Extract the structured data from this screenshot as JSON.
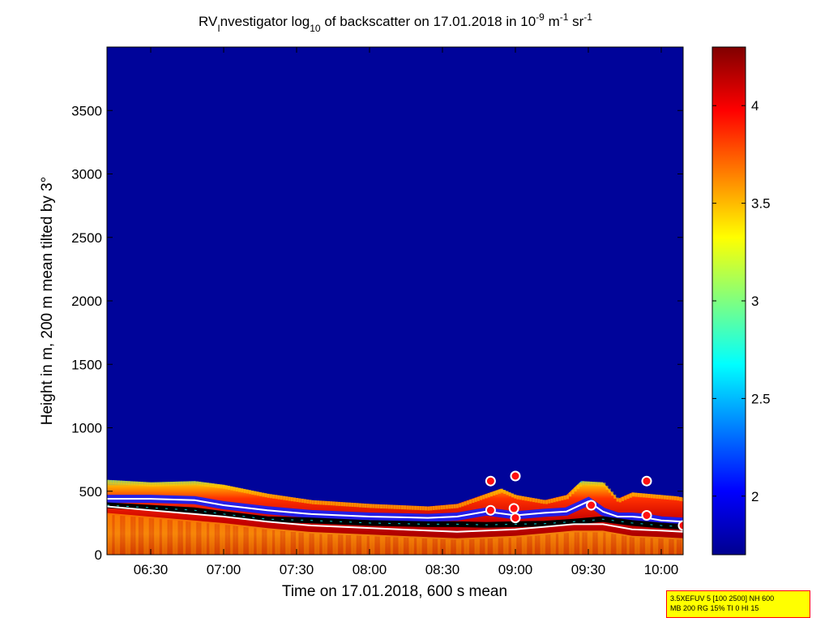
{
  "chart_data": {
    "type": "heatmap",
    "title": {
      "part1": "RV",
      "part1_sub": "I",
      "part2": "nvestigator log",
      "part2_sub": "10",
      "part3": " of backscatter on 17.01.2018 in 10",
      "part3_sup": "-9",
      "part4": " m",
      "part4_sup": "-1",
      "part5": " sr",
      "part5_sup": "-1"
    },
    "xlabel": "Time on 17.01.2018, 600 s mean",
    "ylabel": "Height in m, 200 m mean tilted by 3°",
    "x_range_hours": [
      6.2,
      10.15
    ],
    "y_range": [
      0,
      4000
    ],
    "x_ticks": [
      {
        "label": "06:30",
        "hour": 6.5
      },
      {
        "label": "07:00",
        "hour": 7.0
      },
      {
        "label": "07:30",
        "hour": 7.5
      },
      {
        "label": "08:00",
        "hour": 8.0
      },
      {
        "label": "08:30",
        "hour": 8.5
      },
      {
        "label": "09:00",
        "hour": 9.0
      },
      {
        "label": "09:30",
        "hour": 9.5
      },
      {
        "label": "10:00",
        "hour": 10.0
      }
    ],
    "y_ticks": [
      {
        "label": "0",
        "value": 0
      },
      {
        "label": "500",
        "value": 500
      },
      {
        "label": "1000",
        "value": 1000
      },
      {
        "label": "1500",
        "value": 1500
      },
      {
        "label": "2000",
        "value": 2000
      },
      {
        "label": "2500",
        "value": 2500
      },
      {
        "label": "3000",
        "value": 3000
      },
      {
        "label": "3500",
        "value": 3500
      }
    ],
    "colorbar": {
      "range": [
        1.7,
        4.3
      ],
      "ticks": [
        {
          "label": "2",
          "value": 2.0
        },
        {
          "label": "2.5",
          "value": 2.5
        },
        {
          "label": "3",
          "value": 3.0
        },
        {
          "label": "3.5",
          "value": 3.5
        },
        {
          "label": "4",
          "value": 4.0
        }
      ],
      "colormap": "jet"
    },
    "layer_top_profile": {
      "hours": [
        6.2,
        6.5,
        6.8,
        7.0,
        7.3,
        7.6,
        8.0,
        8.4,
        8.6,
        8.8,
        8.9,
        9.0,
        9.2,
        9.35,
        9.45,
        9.6,
        9.7,
        9.8,
        9.9,
        10.1,
        10.15
      ],
      "heights": [
        590,
        570,
        580,
        550,
        480,
        430,
        400,
        380,
        400,
        480,
        520,
        470,
        430,
        470,
        580,
        570,
        440,
        490,
        480,
        460,
        450
      ]
    },
    "upper_line": {
      "hours": [
        6.2,
        6.5,
        6.8,
        7.0,
        7.3,
        7.6,
        8.0,
        8.4,
        8.6,
        8.8,
        9.0,
        9.2,
        9.35,
        9.5,
        9.6,
        9.7,
        9.8,
        9.9,
        10.0,
        10.15
      ],
      "heights": [
        440,
        440,
        430,
        390,
        350,
        320,
        300,
        290,
        300,
        340,
        310,
        330,
        340,
        420,
        340,
        300,
        300,
        290,
        270,
        260
      ]
    },
    "black_line": {
      "hours": [
        6.2,
        6.5,
        6.8,
        7.0,
        7.3,
        7.6,
        8.0,
        8.4,
        8.6,
        8.8,
        9.0,
        9.2,
        9.4,
        9.6,
        9.8,
        10.0,
        10.15
      ],
      "heights": [
        390,
        370,
        350,
        320,
        280,
        270,
        250,
        240,
        240,
        235,
        240,
        245,
        260,
        280,
        250,
        230,
        220
      ]
    },
    "lower_line": {
      "hours": [
        6.2,
        6.5,
        6.8,
        7.0,
        7.3,
        7.6,
        8.0,
        8.4,
        8.6,
        8.8,
        9.0,
        9.2,
        9.4,
        9.6,
        9.8,
        10.0,
        10.15
      ],
      "heights": [
        380,
        350,
        320,
        300,
        260,
        230,
        210,
        190,
        180,
        190,
        200,
        220,
        240,
        240,
        200,
        190,
        180
      ]
    },
    "marker_points": [
      {
        "hour": 8.83,
        "height": 580
      },
      {
        "hour": 9.0,
        "height": 620
      },
      {
        "hour": 8.83,
        "height": 350
      },
      {
        "hour": 8.99,
        "height": 365
      },
      {
        "hour": 9.0,
        "height": 290
      },
      {
        "hour": 9.52,
        "height": 390
      },
      {
        "hour": 9.9,
        "height": 580
      },
      {
        "hour": 9.9,
        "height": 310
      },
      {
        "hour": 10.15,
        "height": 230
      }
    ]
  },
  "infobox": {
    "line1": "3.5XEFUV 5 [100 2500] NH 600",
    "line2": "MB 200 RG 15% TI 0 HI 15"
  }
}
